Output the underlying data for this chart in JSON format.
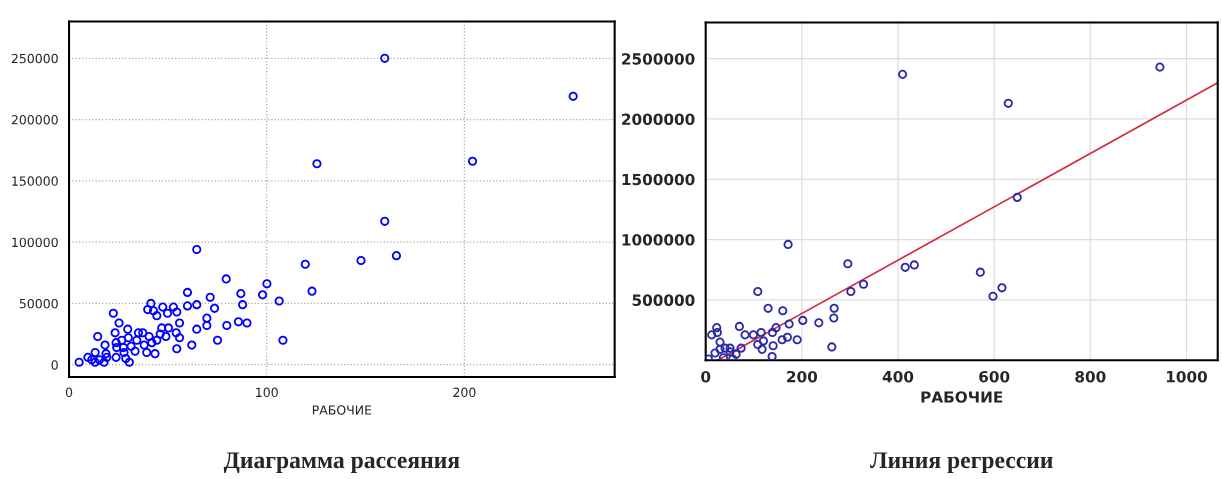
{
  "chart_data": [
    {
      "type": "scatter",
      "title": "Диаграмма рассеяния",
      "xlabel": "РАБОЧИЕ",
      "xlim": [
        0,
        276
      ],
      "xticks": [
        0,
        100,
        200
      ],
      "ylim": [
        -10000,
        280000
      ],
      "yticks": [
        0,
        50000,
        100000,
        150000,
        200000,
        250000
      ],
      "grid": true,
      "marker": "circle",
      "legend": false,
      "series": [
        {
          "color": "#0000ff",
          "x": [
            5.1,
            9.5,
            11.5,
            13.2,
            13.2,
            14.5,
            15.4,
            17.7,
            18.2,
            18.7,
            19.1,
            22.4,
            23.3,
            23.8,
            24.1,
            23.8,
            25.3,
            26.7,
            27.5,
            27.8,
            28.7,
            29.7,
            30.0,
            30.5,
            31.4,
            33.4,
            34.3,
            35.1,
            37.3,
            38.0,
            39.3,
            39.8,
            40.5,
            41.4,
            41.9,
            42.7,
            43.5,
            44.4,
            44.4,
            46.1,
            46.9,
            47.4,
            49.0,
            49.8,
            50.3,
            52.8,
            54.2,
            54.5,
            54.5,
            55.9,
            55.9,
            59.9,
            59.9,
            62.1,
            64.6,
            64.6,
            64.6,
            69.7,
            69.7,
            71.4,
            73.6,
            75.1,
            79.5,
            79.8,
            85.7,
            86.9,
            87.8,
            90.0,
            97.9,
            100.1,
            106.3,
            108.2,
            119.5,
            122.9,
            125.4,
            147.7,
            159.7,
            159.7,
            165.6,
            204.1,
            255
          ],
          "values": [
            2000,
            6000,
            4000,
            10000,
            2000,
            23000,
            4000,
            2000,
            16000,
            9000,
            6000,
            42000,
            26000,
            18000,
            14000,
            6000,
            34000,
            20000,
            14000,
            10000,
            5000,
            29000,
            22000,
            2000,
            15000,
            11000,
            20000,
            26000,
            26000,
            16000,
            10000,
            45000,
            23000,
            50000,
            18000,
            44000,
            9000,
            40000,
            20000,
            25000,
            30000,
            47000,
            23000,
            42000,
            30000,
            47000,
            26000,
            43000,
            13000,
            34000,
            22000,
            59000,
            48000,
            16000,
            94000,
            29000,
            49000,
            32000,
            38000,
            55000,
            46000,
            20000,
            70000,
            32000,
            35000,
            58000,
            49000,
            34000,
            57000,
            66000,
            52000,
            20000,
            82000,
            60000,
            164000,
            85000,
            250000,
            117000,
            89000,
            166000,
            219000
          ]
        }
      ]
    },
    {
      "type": "scatter",
      "title": "Линия регрессии",
      "xlabel": "РАБОЧИЕ",
      "xlim": [
        0,
        1065
      ],
      "xticks": [
        0,
        200,
        400,
        600,
        800,
        1000
      ],
      "ylim": [
        0,
        2800000
      ],
      "yticks": [
        500000,
        1000000,
        1500000,
        2000000,
        2500000
      ],
      "grid": true,
      "marker": "circle",
      "legend": false,
      "series": [
        {
          "color": "#2a2aa8",
          "x": [
            409.5,
            171.4,
            295.6,
            415,
            433.8,
            328.3,
            301.9,
            108.3,
            129.8,
            267.2,
            160.3,
            266.5,
            70.1,
            22.9,
            202,
            235.3,
            173.5,
            12.5,
            24.3,
            81.9,
            99.2,
            115.2,
            138.8,
            146.4,
            108.3,
            120.1,
            117.3,
            140.2,
            159,
            170,
            190.2,
            262.3,
            138.1,
            29.8,
            29.8,
            40.3,
            50.7,
            73.6,
            19.4,
            50.7,
            63.2,
            36.8,
            5.6,
            56.2,
            944.7,
            629.4,
            648,
            571.2,
            616.2,
            597.6
          ],
          "values": [
            2370000,
            960000,
            800000,
            770000,
            790000,
            630000,
            570000,
            570000,
            430000,
            430000,
            410000,
            350000,
            280000,
            270000,
            330000,
            310000,
            300000,
            210000,
            230000,
            210000,
            210000,
            230000,
            230000,
            270000,
            130000,
            160000,
            90000,
            120000,
            170000,
            190000,
            170000,
            110000,
            30000,
            150000,
            90000,
            100000,
            100000,
            100000,
            60000,
            70000,
            50000,
            20000,
            10000,
            10000,
            2430000,
            2130000,
            1350000,
            730000,
            600000,
            530000
          ]
        },
        {
          "type": "line",
          "color": "#d42a3a",
          "marker": "none",
          "x": [
            25,
            1065
          ],
          "values": [
            0,
            2300000
          ]
        }
      ]
    }
  ]
}
